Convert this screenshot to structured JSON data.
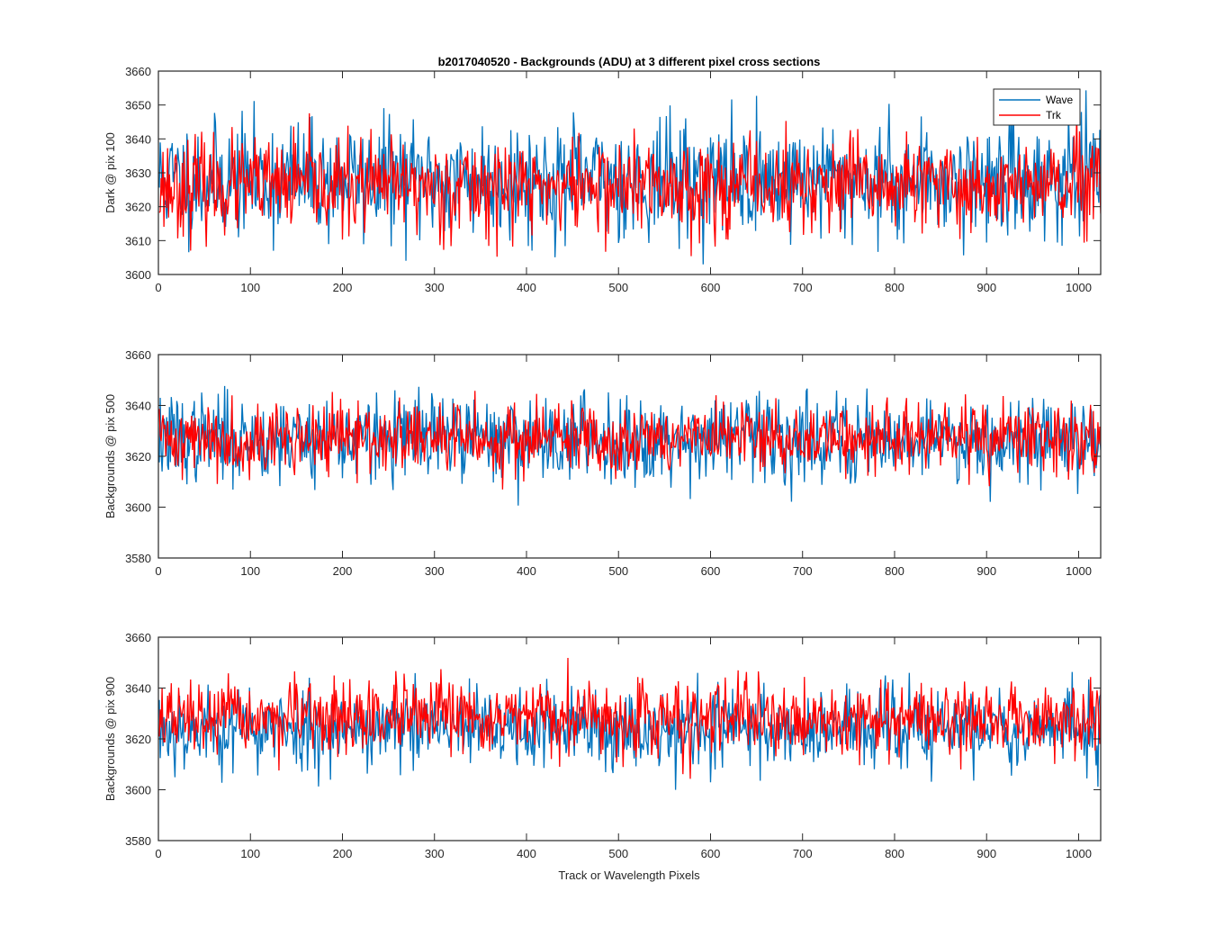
{
  "figure": {
    "title": "b2017040520 - Backgrounds (ADU) at 3 different pixel cross sections",
    "xlabel": "Track or Wavelength Pixels"
  },
  "chart_data": [
    {
      "type": "line",
      "ylabel": "Dark @ pix 100",
      "xlim": [
        0,
        1024
      ],
      "ylim": [
        3600,
        3660
      ],
      "xticks": [
        "0",
        "100",
        "200",
        "300",
        "400",
        "500",
        "600",
        "700",
        "800",
        "900",
        "1000"
      ],
      "yticks": [
        "3600",
        "3610",
        "3620",
        "3630",
        "3640",
        "3650",
        "3660"
      ],
      "legend": {
        "placement": "top-right",
        "entries": [
          "Wave",
          "Trk"
        ]
      },
      "series": [
        {
          "name": "Wave",
          "color": "#0072BD",
          "n": 1024,
          "mean": 3628,
          "std": 8.5,
          "min": 3603,
          "max": 3658,
          "seed": 11
        },
        {
          "name": "Trk",
          "color": "#FF0000",
          "n": 1024,
          "mean": 3626,
          "std": 7,
          "min": 3602,
          "max": 3658,
          "seed": 23
        }
      ]
    },
    {
      "type": "line",
      "ylabel": "Backgrounds @ pix 500",
      "xlim": [
        0,
        1024
      ],
      "ylim": [
        3580,
        3660
      ],
      "xticks": [
        "0",
        "100",
        "200",
        "300",
        "400",
        "500",
        "600",
        "700",
        "800",
        "900",
        "1000"
      ],
      "yticks": [
        "3580",
        "3600",
        "3620",
        "3640",
        "3660"
      ],
      "series": [
        {
          "name": "Wave",
          "color": "#0072BD",
          "n": 1024,
          "mean": 3627,
          "std": 8.5,
          "min": 3600,
          "max": 3657,
          "seed": 37
        },
        {
          "name": "Trk",
          "color": "#FF0000",
          "n": 1024,
          "mean": 3627,
          "std": 7,
          "min": 3599,
          "max": 3660,
          "seed": 41
        }
      ]
    },
    {
      "type": "line",
      "ylabel": "Backgrounds @ pix 900",
      "xlim": [
        0,
        1024
      ],
      "ylim": [
        3580,
        3660
      ],
      "xticks": [
        "0",
        "100",
        "200",
        "300",
        "400",
        "500",
        "600",
        "700",
        "800",
        "900",
        "1000"
      ],
      "yticks": [
        "3580",
        "3600",
        "3620",
        "3640",
        "3660"
      ],
      "series": [
        {
          "name": "Wave",
          "color": "#0072BD",
          "n": 1024,
          "mean": 3624,
          "std": 8,
          "min": 3594,
          "max": 3654,
          "seed": 53
        },
        {
          "name": "Trk",
          "color": "#FF0000",
          "n": 1024,
          "mean": 3628,
          "std": 7,
          "min": 3594,
          "max": 3656,
          "seed": 67
        }
      ]
    }
  ]
}
